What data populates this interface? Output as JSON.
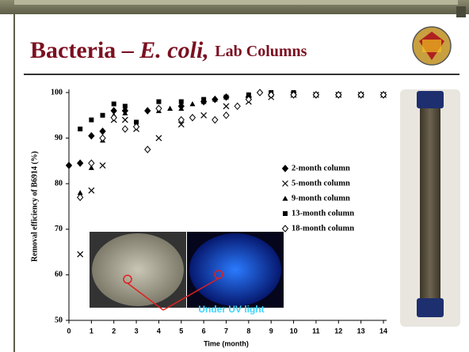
{
  "slide": {
    "title_main": "Bacteria –",
    "title_italic": "E. coli,",
    "title_small": "Lab Columns",
    "photo_caption": "Under UV light"
  },
  "chart_data": {
    "type": "scatter",
    "xlabel": "Time (month)",
    "ylabel": "Removal efficiency of B6914 (%)",
    "xlim": [
      0,
      14
    ],
    "xticks": [
      0,
      1,
      2,
      3,
      4,
      5,
      6,
      7,
      8,
      9,
      10,
      11,
      12,
      13,
      14
    ],
    "ylim": [
      50,
      100
    ],
    "yticks": [
      50,
      60,
      70,
      80,
      90,
      100
    ],
    "grid": false,
    "legend": "right",
    "series": [
      {
        "name": "2-month column",
        "marker": "diamond",
        "color": "#000000",
        "x": [
          0,
          0.5,
          1,
          1.5,
          2,
          2.5,
          3.5,
          5,
          6,
          6.5,
          7,
          8,
          9,
          10,
          11,
          12,
          13,
          14
        ],
        "values": [
          84,
          84.5,
          90.5,
          91.5,
          96,
          96,
          96,
          97,
          98,
          98.5,
          99,
          99,
          99.5,
          99.5,
          99.5,
          99.5,
          99.5,
          99.5
        ]
      },
      {
        "name": "5-month column",
        "marker": "x",
        "color": "#000000",
        "x": [
          0.5,
          1,
          1.5,
          2,
          2.5,
          3,
          4,
          5,
          6,
          7,
          8,
          9,
          10,
          11,
          12,
          13,
          14
        ],
        "values": [
          64.5,
          78.5,
          84,
          94,
          94,
          92,
          90,
          93,
          95,
          97,
          98,
          99,
          99.5,
          99.5,
          99.5,
          99.5,
          99.5
        ]
      },
      {
        "name": "9-month column",
        "marker": "triangle",
        "color": "#000000",
        "x": [
          0.5,
          1,
          1.5,
          2,
          2.5,
          4,
          4.5,
          5,
          5.5,
          6,
          6.5,
          7,
          8,
          9,
          10,
          11,
          12,
          13,
          14
        ],
        "values": [
          78,
          83.5,
          89.5,
          95,
          95.5,
          96,
          96.5,
          96.5,
          97.5,
          98,
          98.5,
          99,
          99.5,
          99.5,
          99.5,
          99.5,
          99.5,
          99.5,
          99.5
        ]
      },
      {
        "name": "13-month column",
        "marker": "square",
        "color": "#000000",
        "x": [
          0.5,
          1,
          1.5,
          2,
          2.5,
          3,
          4,
          5,
          6,
          7,
          8,
          9,
          10,
          11,
          12,
          13,
          14
        ],
        "values": [
          92,
          94,
          95,
          97.5,
          97,
          93.5,
          98,
          98,
          98.5,
          99,
          99.5,
          100,
          100,
          99.5,
          99.5,
          99.5,
          99.5
        ]
      },
      {
        "name": "18-month column",
        "marker": "open-diamond",
        "color": "#000000",
        "x": [
          0.5,
          1,
          1.5,
          2,
          2.5,
          3,
          3.5,
          4,
          5,
          5.5,
          6.5,
          7,
          7.5,
          8,
          8.5,
          9,
          10,
          11,
          12,
          13,
          14
        ],
        "values": [
          77,
          84.5,
          90,
          94.5,
          92,
          92.5,
          87.5,
          96.5,
          94,
          94.5,
          94,
          95,
          97,
          98.5,
          100,
          99.5,
          99.5,
          99.5,
          99.5,
          99.5,
          99.5
        ]
      }
    ]
  }
}
